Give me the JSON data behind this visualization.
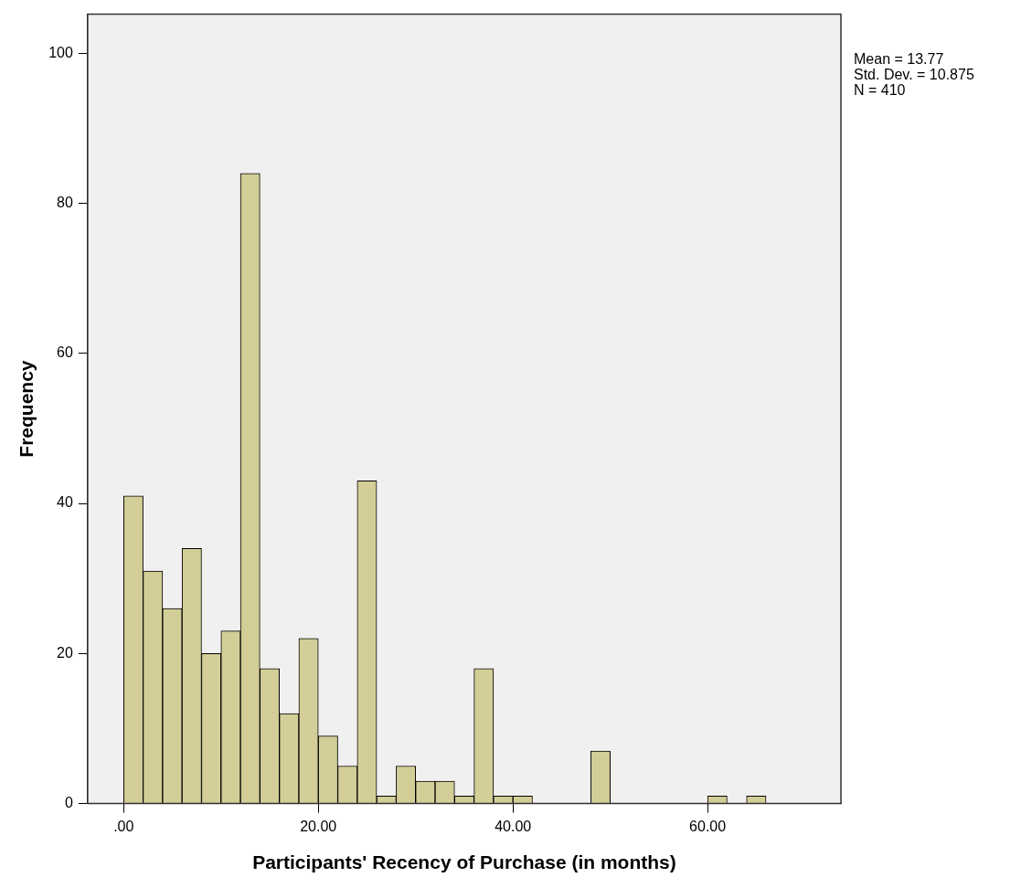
{
  "chart_data": {
    "type": "histogram",
    "xlabel": "Participants' Recency of Purchase (in months)",
    "ylabel": "Frequency",
    "bins": [
      0,
      2,
      4,
      6,
      8,
      10,
      12,
      14,
      16,
      18,
      20,
      22,
      24,
      26,
      28,
      30,
      32,
      34,
      36,
      38,
      40,
      42,
      44,
      46,
      48,
      50,
      52,
      54,
      56,
      58,
      60,
      62,
      64,
      66
    ],
    "values": [
      41,
      31,
      26,
      34,
      20,
      23,
      84,
      18,
      12,
      22,
      9,
      5,
      43,
      1,
      5,
      3,
      3,
      1,
      18,
      1,
      1,
      0,
      0,
      0,
      7,
      0,
      0,
      0,
      0,
      0,
      1,
      0,
      1
    ],
    "color": "#d3ce97",
    "xlim": [
      -3.7,
      73.7
    ],
    "xticks": [
      {
        "value": 0,
        "label": ".00"
      },
      {
        "value": 20,
        "label": "20.00"
      },
      {
        "value": 40,
        "label": "40.00"
      },
      {
        "value": 60,
        "label": "60.00"
      }
    ],
    "ylim": [
      0,
      105.2
    ],
    "yticks": [
      0,
      20,
      40,
      60,
      80,
      100
    ],
    "grid": false,
    "legend": false,
    "annotations": [
      "Mean = 13.77",
      "Std. Dev. = 10.875",
      "N = 410"
    ]
  }
}
